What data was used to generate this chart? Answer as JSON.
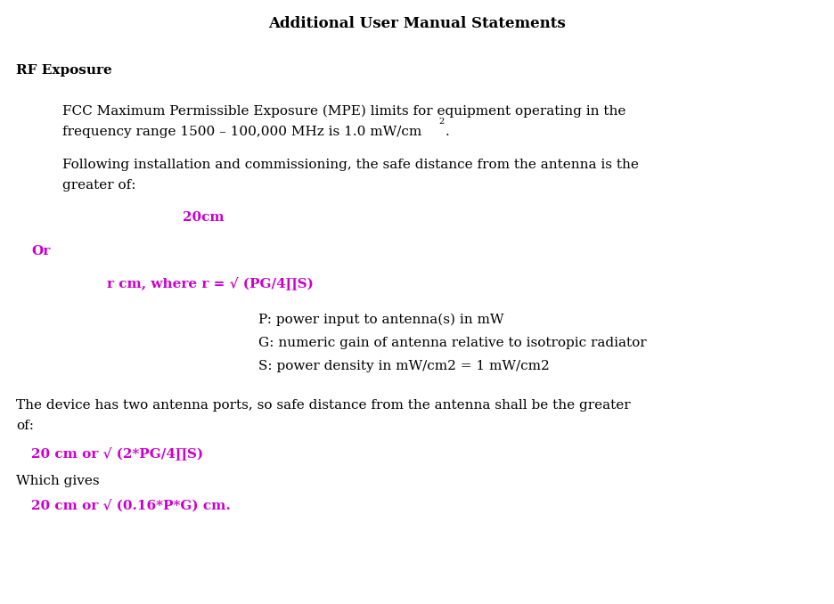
{
  "title": "Additional User Manual Statements",
  "title_fontsize": 12,
  "bg_color": "#ffffff",
  "text_color": "#000000",
  "magenta_color": "#cc00cc",
  "section_heading": "RF Exposure",
  "para1_line1": "FCC Maximum Permissible Exposure (MPE) limits for equipment operating in the",
  "para1_line2": "frequency range 1500 – 100,000 MHz is 1.0 mW/cm",
  "para1_super": "2",
  "para1_end": ".",
  "para2_line1": "Following installation and commissioning, the safe distance from the antenna is the",
  "para2_line2": "greater of:",
  "magenta_20cm": "20cm",
  "magenta_or": "Or",
  "magenta_r": "r cm, where r = √ (PG/4∏S)",
  "p_line": "P: power input to antenna(s) in mW",
  "g_line": "G: numeric gain of antenna relative to isotropic radiator",
  "s_line": "S: power density in mW/cm2 = 1 mW/cm2",
  "para3_line1": "The device has two antenna ports, so safe distance from the antenna shall be the greater",
  "para3_line2": "of:",
  "magenta_formula1": "20 cm or √ (2*PG/4∏S)",
  "which_gives": "Which gives",
  "magenta_formula2": "20 cm or √ (0.16*P*G) cm.",
  "body_fontsize": 11,
  "magenta_fontsize": 11,
  "font_family": "DejaVu Serif"
}
